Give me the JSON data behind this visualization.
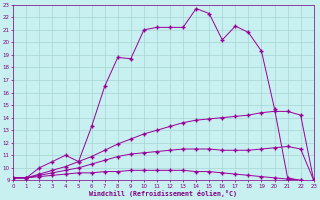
{
  "background_color": "#c8f0f0",
  "grid_color": "#a8d4d4",
  "line_color": "#990099",
  "xlabel": "Windchill (Refroidissement éolien,°C)",
  "xlim": [
    0,
    23
  ],
  "ylim": [
    9,
    23
  ],
  "xticks": [
    0,
    1,
    2,
    3,
    4,
    5,
    6,
    7,
    8,
    9,
    10,
    11,
    12,
    13,
    14,
    15,
    16,
    17,
    18,
    19,
    20,
    21,
    22,
    23
  ],
  "yticks": [
    9,
    10,
    11,
    12,
    13,
    14,
    15,
    16,
    17,
    18,
    19,
    20,
    21,
    22,
    23
  ],
  "curve1_x": [
    0,
    1,
    2,
    3,
    4,
    5,
    6,
    7,
    8,
    9,
    10,
    11,
    12,
    13,
    14,
    15,
    16,
    17,
    18,
    19,
    20,
    21,
    22,
    23
  ],
  "curve1_y": [
    9.2,
    9.2,
    9.3,
    9.4,
    9.5,
    9.6,
    9.6,
    9.7,
    9.7,
    9.8,
    9.8,
    9.8,
    9.8,
    9.8,
    9.7,
    9.7,
    9.6,
    9.5,
    9.4,
    9.3,
    9.2,
    9.1,
    9.0,
    8.8
  ],
  "curve2_x": [
    0,
    1,
    2,
    3,
    4,
    5,
    6,
    7,
    8,
    9,
    10,
    11,
    12,
    13,
    14,
    15,
    16,
    17,
    18,
    19,
    20,
    21,
    22,
    23
  ],
  "curve2_y": [
    9.2,
    9.2,
    9.4,
    9.6,
    9.8,
    10.0,
    10.3,
    10.6,
    10.9,
    11.1,
    11.2,
    11.3,
    11.4,
    11.5,
    11.5,
    11.5,
    11.4,
    11.4,
    11.4,
    11.5,
    11.6,
    11.7,
    11.5,
    9.0
  ],
  "curve3_x": [
    0,
    1,
    2,
    3,
    4,
    5,
    6,
    7,
    8,
    9,
    10,
    11,
    12,
    13,
    14,
    15,
    16,
    17,
    18,
    19,
    20,
    21,
    22,
    23
  ],
  "curve3_y": [
    9.2,
    9.2,
    9.5,
    9.8,
    10.1,
    10.5,
    10.9,
    11.4,
    11.9,
    12.3,
    12.7,
    13.0,
    13.3,
    13.6,
    13.8,
    13.9,
    14.0,
    14.1,
    14.2,
    14.4,
    14.5,
    14.5,
    14.2,
    9.0
  ],
  "curve4_x": [
    0,
    1,
    2,
    3,
    4,
    5,
    6,
    7,
    8,
    9,
    10,
    11,
    12,
    13,
    14,
    15,
    16,
    17,
    18,
    19,
    20,
    21,
    22,
    23
  ],
  "curve4_y": [
    9.2,
    9.2,
    10.0,
    10.5,
    11.0,
    10.5,
    13.3,
    16.5,
    18.8,
    18.7,
    21.0,
    21.2,
    21.2,
    21.2,
    22.7,
    22.3,
    20.2,
    21.3,
    20.8,
    19.3,
    14.7,
    9.2,
    9.0,
    8.8
  ]
}
